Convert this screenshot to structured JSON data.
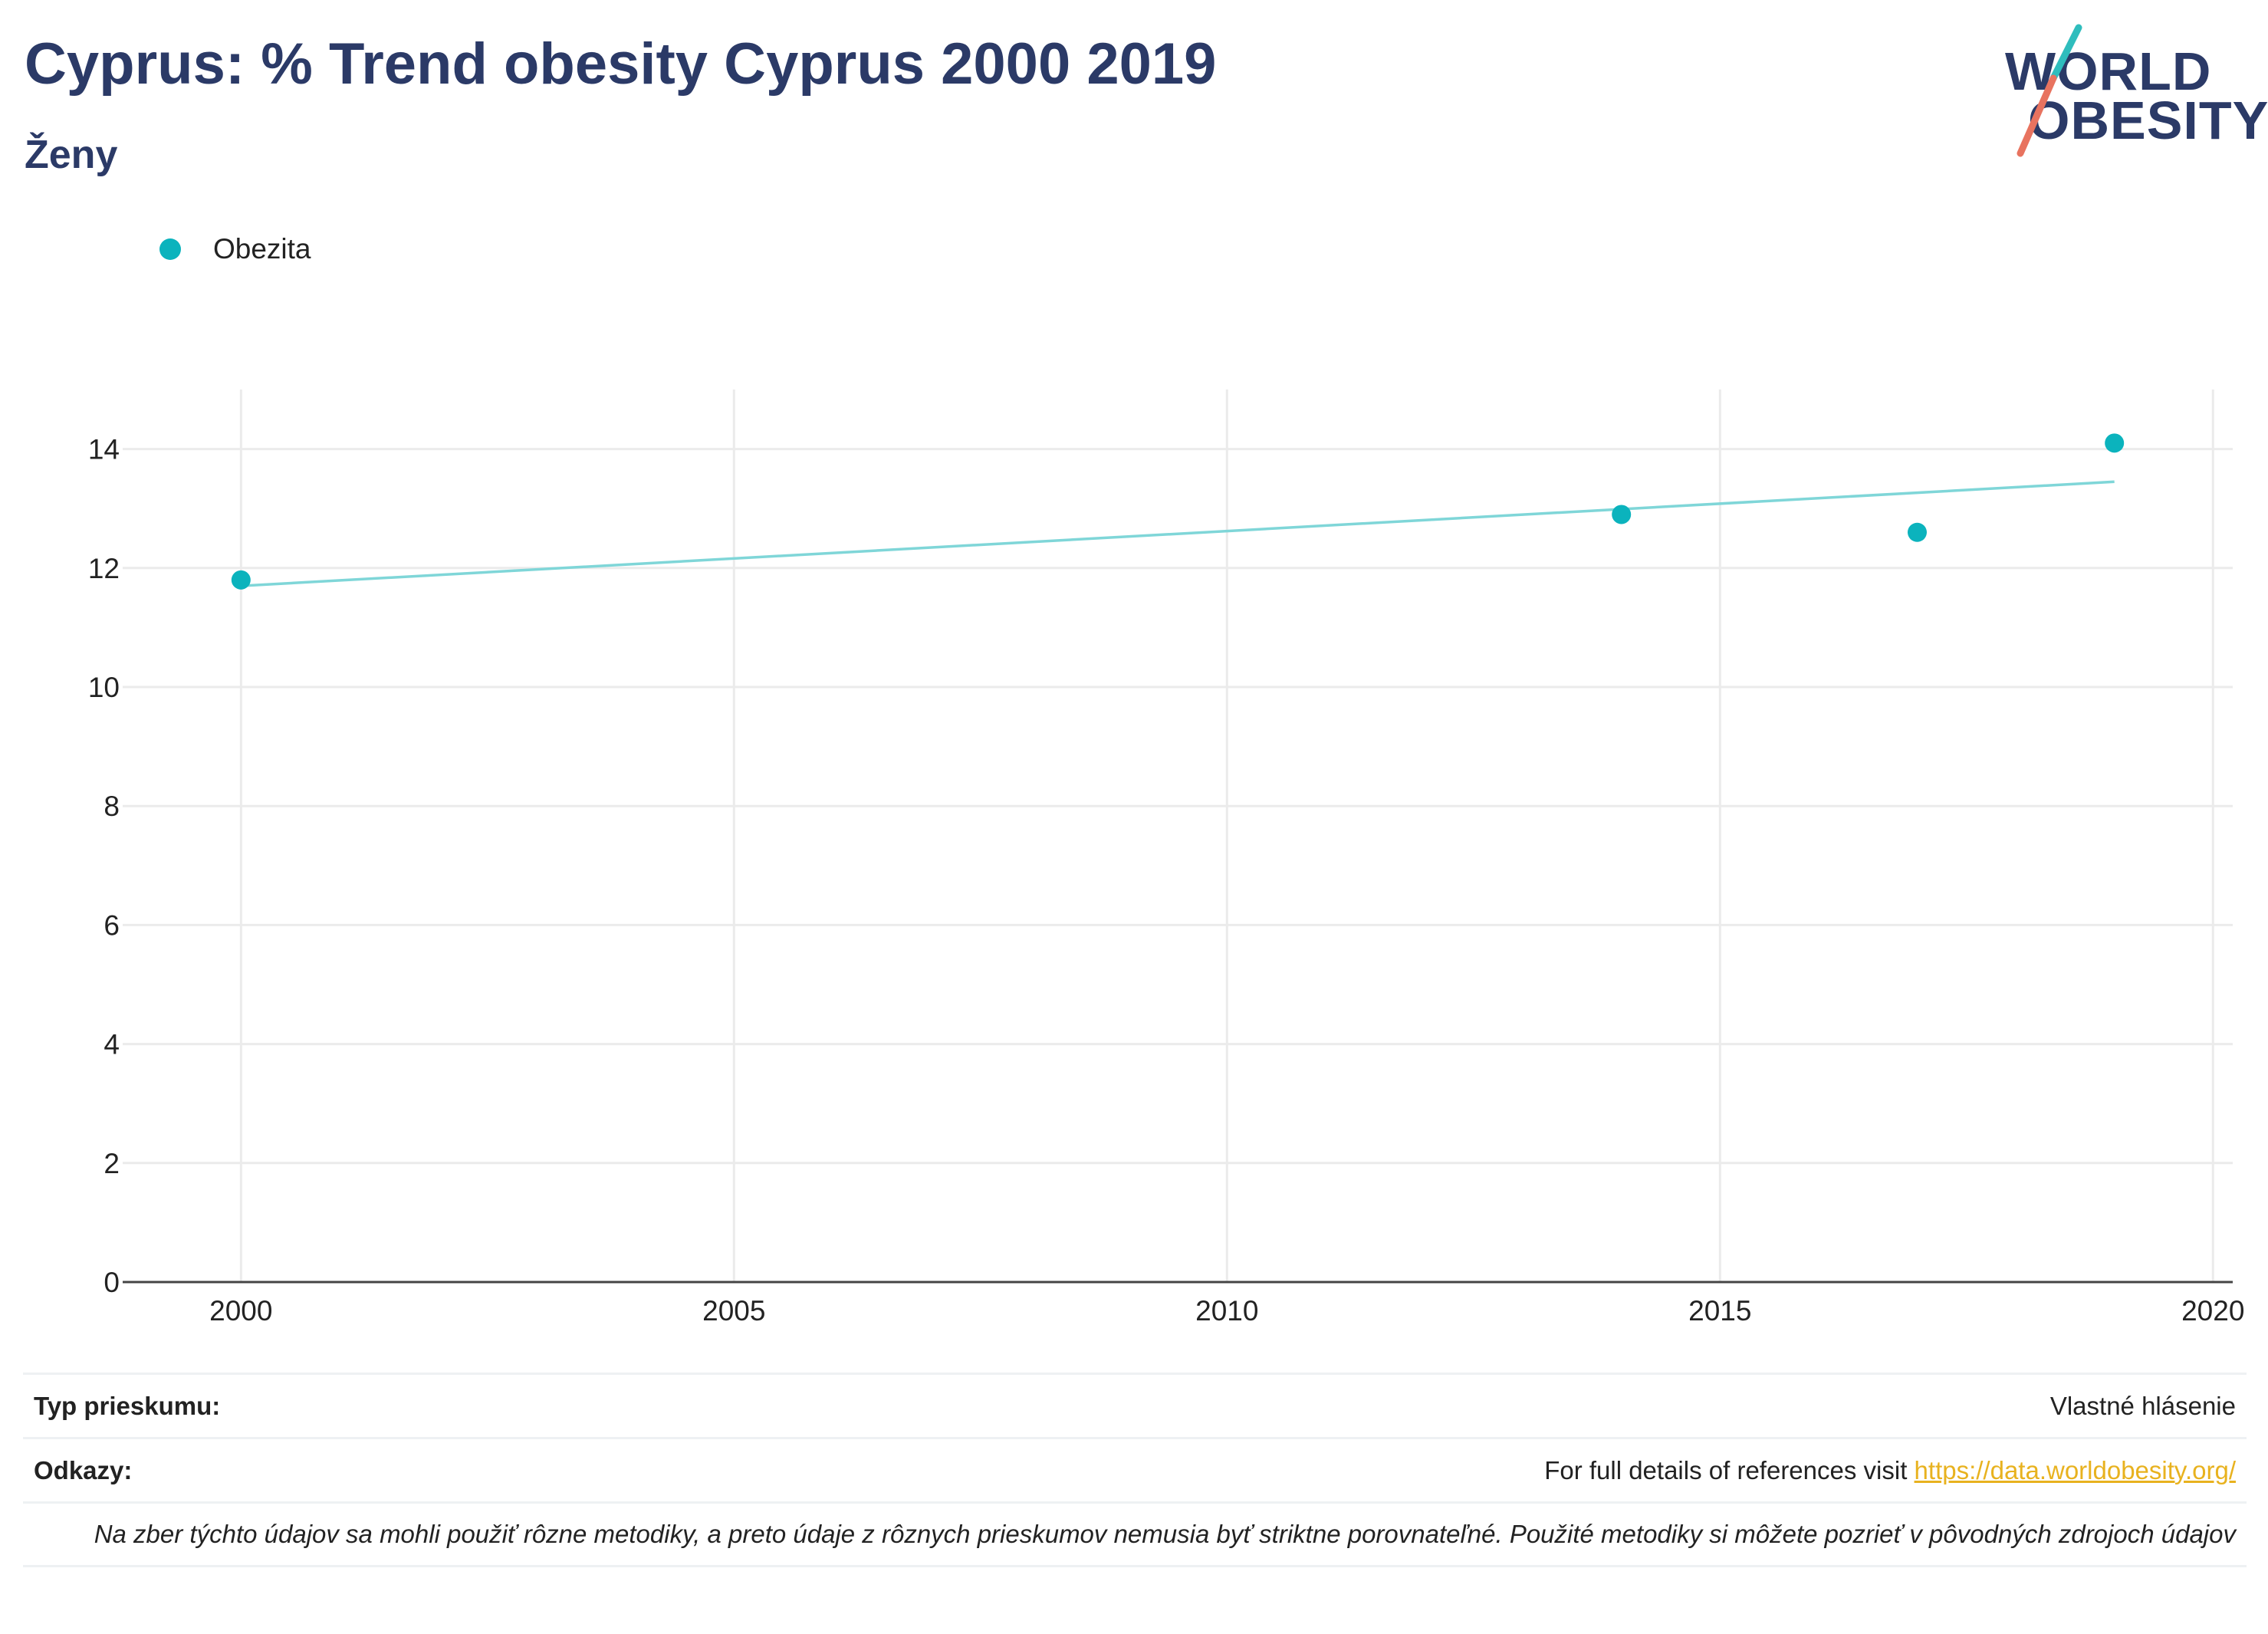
{
  "header": {
    "title": "Cyprus: % Trend obesity Cyprus 2000 2019",
    "subtitle": "Ženy"
  },
  "logo": {
    "line1": "WORLD",
    "line2": "OBESITY",
    "accent_colors": [
      "#2fbdbd",
      "#e8735f"
    ]
  },
  "colors": {
    "title": "#2b3a67",
    "series": "#0bb3bd",
    "trendline": "#7fd6d8",
    "link": "#e8b21f"
  },
  "chart_data": {
    "type": "scatter",
    "series": [
      {
        "name": "Obezita",
        "x": [
          2000,
          2014,
          2017,
          2019
        ],
        "y": [
          11.8,
          12.9,
          12.6,
          14.1
        ]
      }
    ],
    "trendline": {
      "x": [
        2000,
        2019
      ],
      "y": [
        11.7,
        13.45
      ]
    },
    "xlim": [
      1998.8,
      2020.2
    ],
    "ylim": [
      0,
      15
    ],
    "xticks": [
      2000,
      2005,
      2010,
      2015,
      2020
    ],
    "yticks": [
      0,
      2,
      4,
      6,
      8,
      10,
      12,
      14
    ],
    "grid": true,
    "legend_position": "top-left"
  },
  "footer": {
    "survey_type_label": "Typ prieskumu:",
    "survey_type_value": "Vlastné hlásenie",
    "references_label": "Odkazy:",
    "references_text": "For full details of references visit ",
    "references_link": "https://data.worldobesity.org/",
    "note": "Na zber týchto údajov sa mohli použiť rôzne metodiky, a preto údaje z rôznych prieskumov nemusia byť striktne porovnateľné. Použité metodiky si môžete pozrieť v pôvodných zdrojoch údajov"
  }
}
